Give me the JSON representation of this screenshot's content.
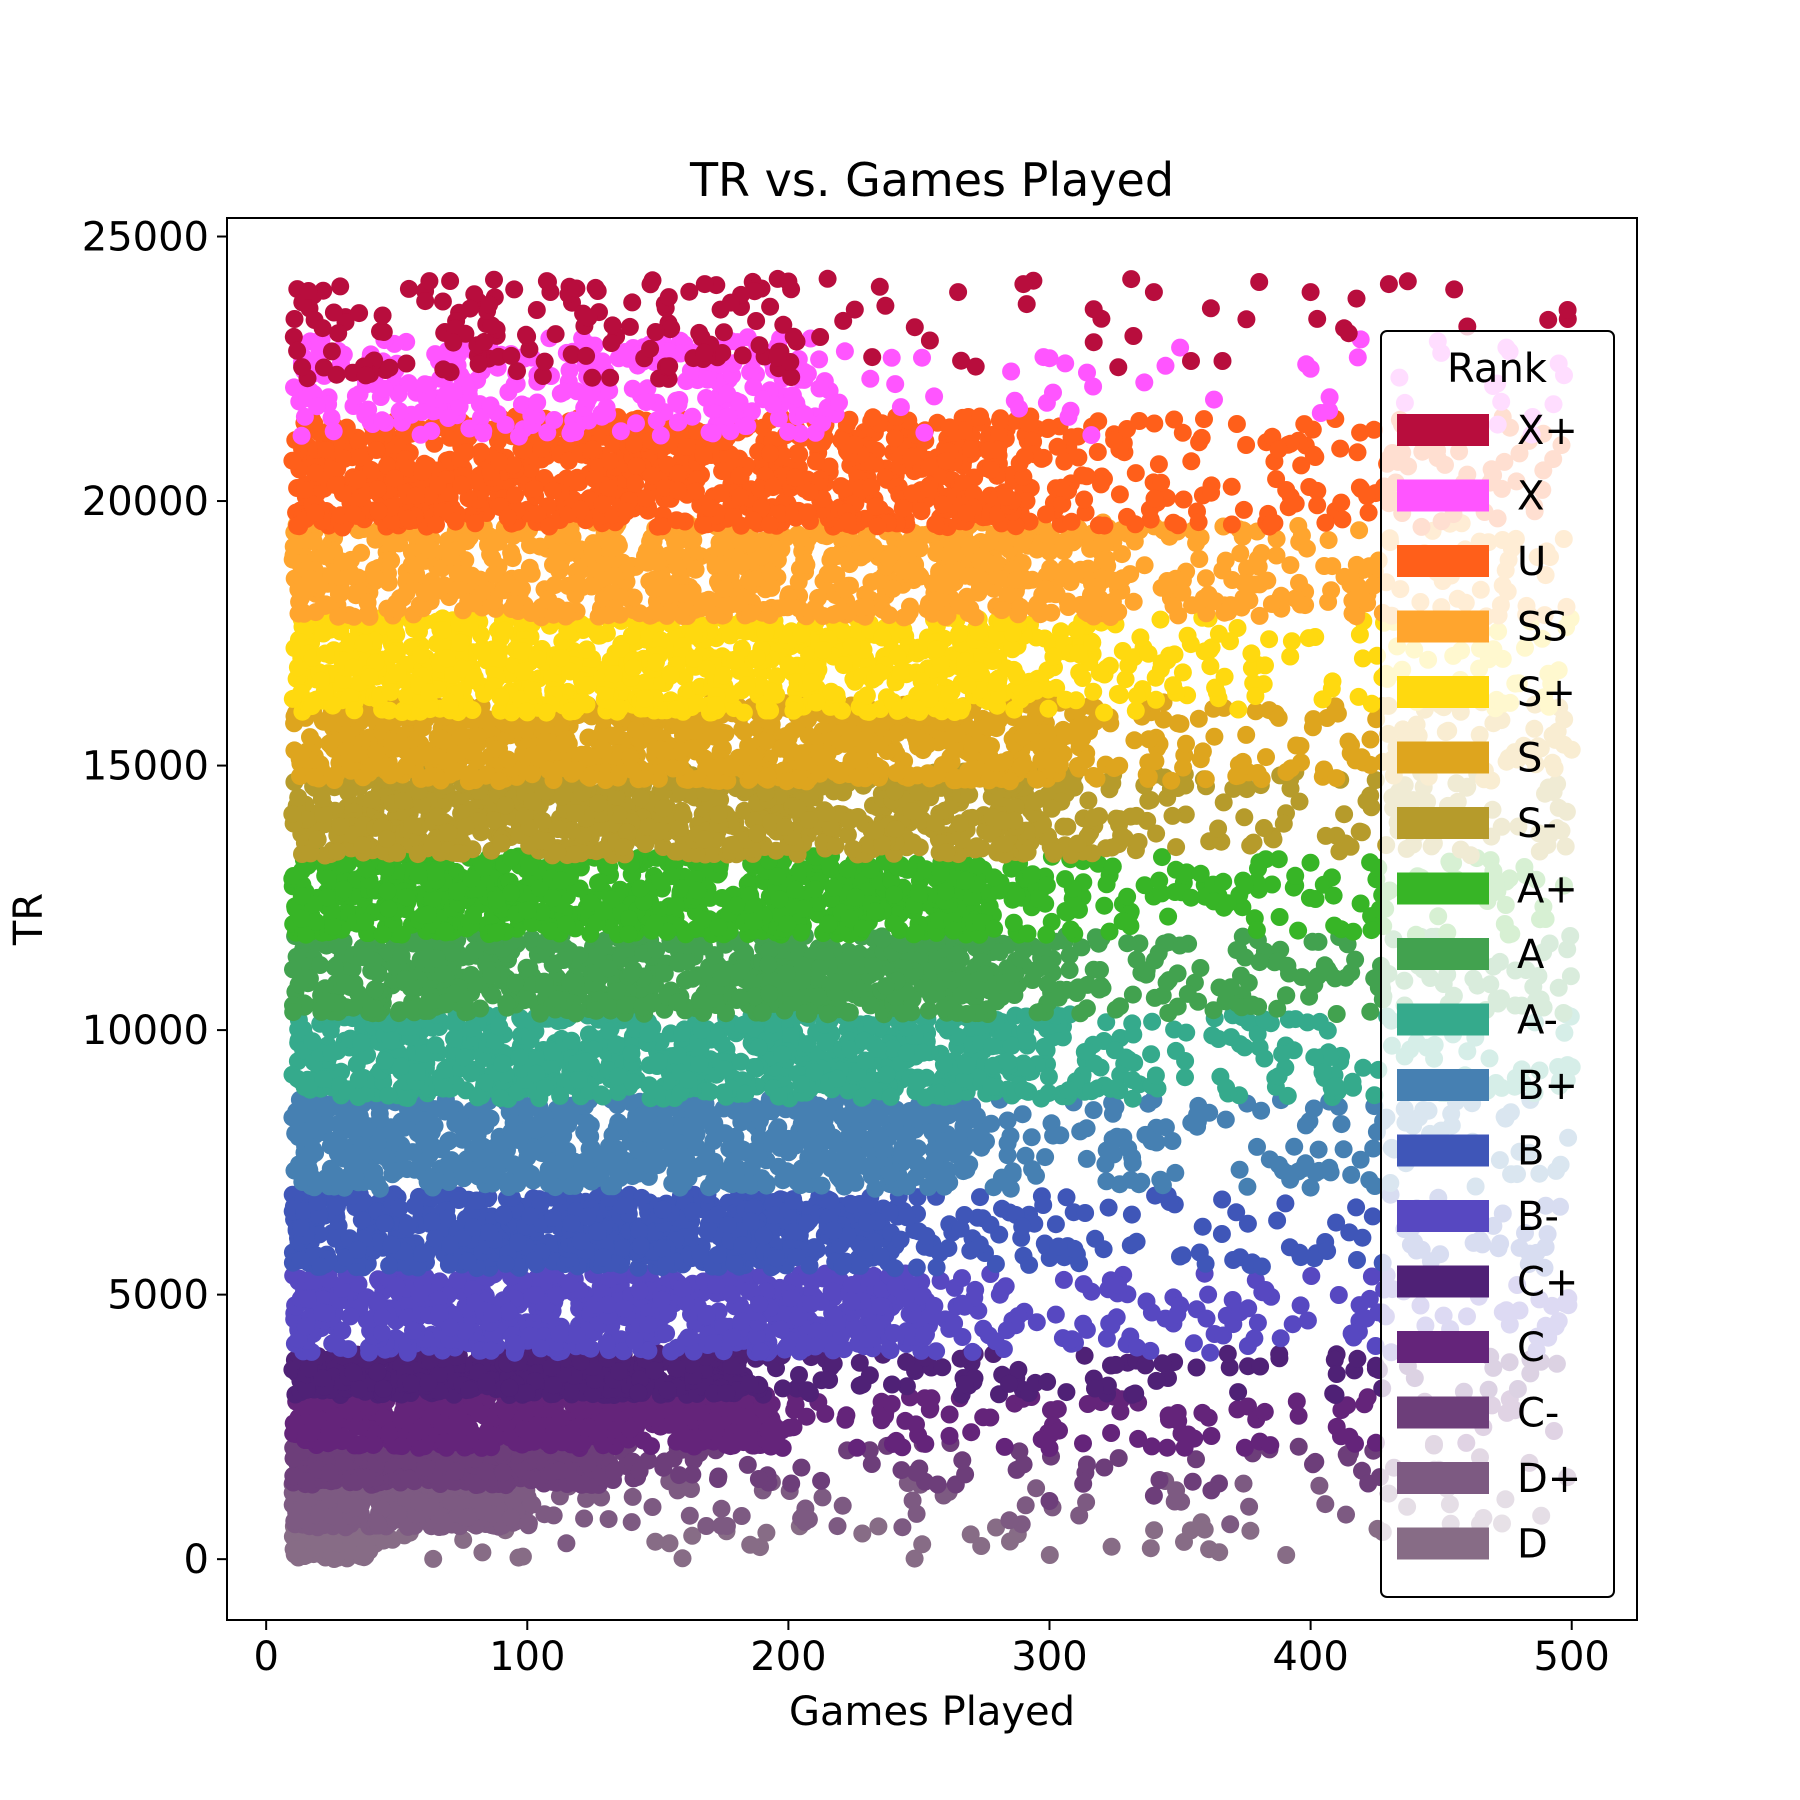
{
  "chart_data": {
    "type": "scatter",
    "title": "TR vs. Games Played",
    "xlabel": "Games Played",
    "ylabel": "TR",
    "xlim": [
      -15,
      525
    ],
    "ylim": [
      -1150,
      25350
    ],
    "xticks": [
      0,
      100,
      200,
      300,
      400,
      500
    ],
    "yticks": [
      0,
      5000,
      10000,
      15000,
      20000,
      25000
    ],
    "grid": false,
    "legend": {
      "title": "Rank",
      "placement": "right-upper"
    },
    "series": [
      {
        "name": "X+",
        "color": "#B80D3D",
        "tr_range": [
          22300,
          24200
        ],
        "dense_until": 200,
        "count": 180,
        "markers": [
          [
            95,
            24000
          ],
          [
            168,
            24100
          ],
          [
            200,
            24150
          ],
          [
            215,
            24200
          ],
          [
            235,
            24050
          ],
          [
            265,
            23950
          ],
          [
            290,
            24100
          ],
          [
            340,
            23950
          ],
          [
            400,
            23950
          ],
          [
            430,
            24100
          ],
          [
            455,
            24000
          ],
          [
            460,
            23300
          ]
        ]
      },
      {
        "name": "X",
        "color": "#FF55FF",
        "tr_range": [
          21200,
          23100
        ],
        "dense_until": 215,
        "count": 330,
        "markers": [
          [
            300,
            22700
          ],
          [
            350,
            22900
          ],
          [
            400,
            22500
          ],
          [
            450,
            22800
          ],
          [
            475,
            22900
          ],
          [
            495,
            22600
          ]
        ]
      },
      {
        "name": "U",
        "color": "#FF5F1A",
        "tr_range": [
          19500,
          21600
        ],
        "dense_until": 280,
        "count": 1100,
        "markers": [
          [
            430,
            20800
          ],
          [
            460,
            20500
          ],
          [
            480,
            20900
          ]
        ]
      },
      {
        "name": "SS",
        "color": "#FFA52E",
        "tr_range": [
          17800,
          19600
        ],
        "dense_until": 320,
        "count": 1000,
        "markers": [
          [
            460,
            19000
          ],
          [
            490,
            18600
          ]
        ]
      },
      {
        "name": "S+",
        "color": "#FFD90F",
        "tr_range": [
          16000,
          17800
        ],
        "dense_until": 280,
        "count": 950,
        "markers": [
          [
            470,
            17200
          ],
          [
            495,
            16800
          ]
        ]
      },
      {
        "name": "S",
        "color": "#DEA51E",
        "tr_range": [
          14700,
          16200
        ],
        "dense_until": 295,
        "count": 950,
        "markers": [
          [
            470,
            15800
          ],
          [
            500,
            15300
          ]
        ]
      },
      {
        "name": "S-",
        "color": "#B69B2B",
        "tr_range": [
          13300,
          14900
        ],
        "dense_until": 290,
        "count": 950,
        "markers": [
          [
            460,
            14600
          ],
          [
            495,
            14200
          ]
        ]
      },
      {
        "name": "A+",
        "color": "#37B526",
        "tr_range": [
          11800,
          13300
        ],
        "dense_until": 270,
        "count": 950,
        "markers": [
          [
            470,
            12600
          ],
          [
            490,
            12100
          ]
        ]
      },
      {
        "name": "A",
        "color": "#42A24F",
        "tr_range": [
          10300,
          11800
        ],
        "dense_until": 280,
        "count": 950,
        "markers": [
          [
            470,
            11200
          ],
          [
            495,
            10800
          ]
        ]
      },
      {
        "name": "A-",
        "color": "#35AA8C",
        "tr_range": [
          8700,
          10300
        ],
        "dense_until": 290,
        "count": 950,
        "markers": [
          [
            460,
            9600
          ],
          [
            500,
            9300
          ]
        ]
      },
      {
        "name": "B+",
        "color": "#4680B2",
        "tr_range": [
          7000,
          8700
        ],
        "dense_until": 260,
        "count": 900,
        "markers": [
          [
            450,
            8100
          ],
          [
            480,
            7700
          ]
        ]
      },
      {
        "name": "B",
        "color": "#3F56B8",
        "tr_range": [
          5500,
          6900
        ],
        "dense_until": 230,
        "count": 850,
        "markers": [
          [
            470,
            6300
          ],
          [
            490,
            5900
          ]
        ]
      },
      {
        "name": "B-",
        "color": "#5748C1",
        "tr_range": [
          3900,
          5400
        ],
        "dense_until": 250,
        "count": 850,
        "markers": [
          [
            480,
            4700
          ],
          [
            495,
            4500
          ]
        ]
      },
      {
        "name": "C+",
        "color": "#4F2176",
        "tr_range": [
          3100,
          3900
        ],
        "dense_until": 180,
        "count": 600,
        "markers": [
          [
            410,
            3500
          ],
          [
            425,
            3600
          ]
        ]
      },
      {
        "name": "C",
        "color": "#64247A",
        "tr_range": [
          2100,
          3100
        ],
        "dense_until": 190,
        "count": 600,
        "markers": [
          [
            270,
            2400
          ],
          [
            300,
            2100
          ],
          [
            410,
            2500
          ],
          [
            425,
            2200
          ]
        ]
      },
      {
        "name": "C-",
        "color": "#6D3E7A",
        "tr_range": [
          1400,
          2200
        ],
        "dense_until": 130,
        "count": 500,
        "markers": [
          [
            300,
            1100
          ],
          [
            340,
            1200
          ],
          [
            362,
            1300
          ]
        ]
      },
      {
        "name": "D+",
        "color": "#7D5A82",
        "tr_range": [
          600,
          1500
        ],
        "dense_until": 100,
        "count": 400,
        "markers": [
          [
            115,
            300
          ],
          [
            140,
            700
          ]
        ]
      },
      {
        "name": "D",
        "color": "#876C86",
        "tr_range": [
          0,
          700
        ],
        "dense_until": 40,
        "count": 220,
        "markers": [
          [
            45,
            350
          ],
          [
            55,
            500
          ]
        ]
      }
    ]
  }
}
